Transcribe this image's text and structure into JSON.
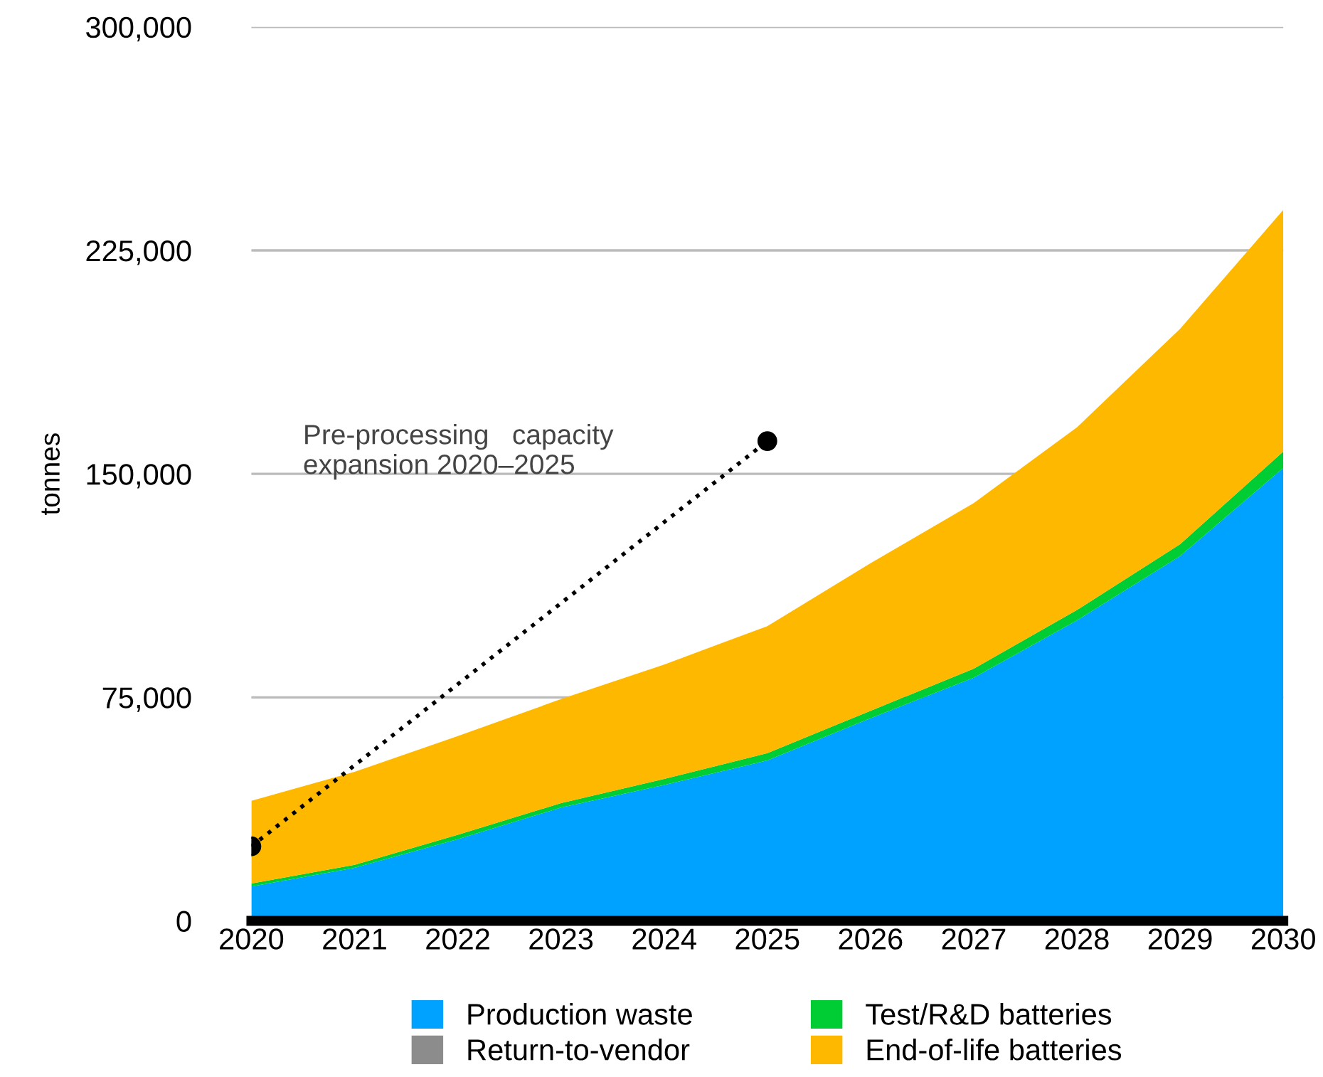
{
  "chart_data": {
    "type": "area",
    "stacked": true,
    "ylabel": "tonnes",
    "categories": [
      "2020",
      "2021",
      "2022",
      "2023",
      "2024",
      "2025",
      "2026",
      "2027",
      "2028",
      "2029",
      "2030"
    ],
    "ylim": [
      0,
      300000
    ],
    "yticks": [
      0,
      {
        "value": 75000,
        "label": "75,000"
      },
      {
        "value": 150000,
        "label": "150,000"
      },
      {
        "value": 225000,
        "label": "225,000"
      },
      {
        "value": 300000,
        "label": "300,000"
      }
    ],
    "grid": "y",
    "legend": "bottom",
    "series": [
      {
        "name": "Production waste",
        "color": "#00a2ff",
        "values": [
          11500,
          17800,
          27400,
          38000,
          45600,
          53800,
          68000,
          81600,
          100800,
          122400,
          152000
        ]
      },
      {
        "name": "Return-to-vendor",
        "color": "#8c8c8c",
        "values": [
          null,
          null,
          null,
          null,
          null,
          null,
          null,
          null,
          null,
          null,
          null
        ]
      },
      {
        "name": "Test/R&D batteries",
        "color": "#00cc33",
        "values": [
          1000,
          1000,
          1500,
          1500,
          2000,
          2500,
          2500,
          3000,
          3500,
          4000,
          5500
        ]
      },
      {
        "name": "End-of-life batteries",
        "color": "#ffb800",
        "values": [
          27800,
          31200,
          33100,
          34900,
          38400,
          42600,
          49500,
          55600,
          61300,
          72300,
          81100
        ]
      },
      {
        "type": "line",
        "values": [
          25000,
          null,
          null,
          null,
          null,
          161000,
          null,
          null,
          null,
          null,
          null
        ],
        "color": "#000000",
        "line_style": "dotted",
        "marker": "circle"
      }
    ],
    "annotations": [
      "Pre-processing   capacity\nexpansion 2020–2025"
    ]
  }
}
